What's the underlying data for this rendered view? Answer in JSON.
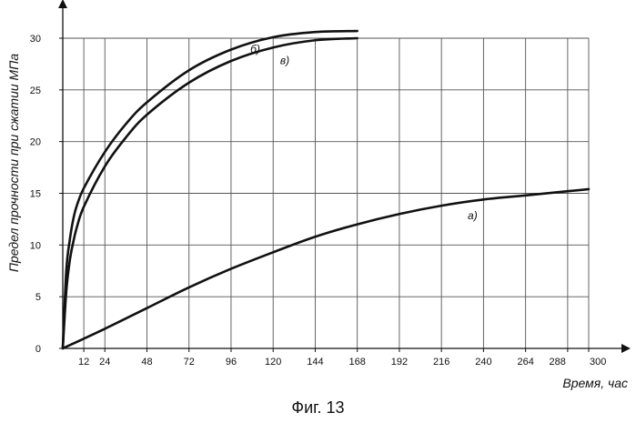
{
  "chart_data": {
    "type": "line",
    "xlabel": "Время, час",
    "ylabel": "Предел прочности при сжатии МПа",
    "xlim": [
      0,
      300
    ],
    "ylim": [
      0,
      30
    ],
    "x_ticks": [
      12,
      24,
      48,
      72,
      96,
      120,
      144,
      168,
      192,
      216,
      240,
      264,
      288,
      300
    ],
    "x_tick_labels": [
      "12",
      "24",
      "48",
      "72",
      "96",
      "120",
      "144",
      "168",
      "192",
      "216",
      "240",
      "264",
      "288",
      "300"
    ],
    "y_ticks": [
      0,
      5,
      10,
      15,
      20,
      25,
      30
    ],
    "y_tick_labels": [
      "0",
      "5",
      "10",
      "15",
      "20",
      "25",
      "30"
    ],
    "grid": true,
    "series": [
      {
        "name": "а)",
        "x": [
          0,
          24,
          48,
          72,
          96,
          120,
          144,
          168,
          192,
          216,
          240,
          264,
          288,
          300
        ],
        "y": [
          0,
          1.9,
          3.9,
          5.9,
          7.7,
          9.3,
          10.8,
          12.0,
          13.0,
          13.8,
          14.4,
          14.8,
          15.2,
          15.4
        ]
      },
      {
        "name": "б)",
        "x": [
          0,
          2,
          4,
          6,
          8,
          12,
          24,
          36,
          48,
          72,
          96,
          120,
          144,
          168
        ],
        "y": [
          0,
          7.5,
          10.5,
          12.5,
          13.8,
          15.5,
          19.0,
          21.7,
          23.8,
          26.9,
          28.9,
          30.1,
          30.6,
          30.7
        ]
      },
      {
        "name": "в)",
        "x": [
          0,
          2,
          4,
          6,
          8,
          12,
          24,
          36,
          48,
          72,
          96,
          120,
          144,
          168
        ],
        "y": [
          0,
          5.5,
          8.5,
          10.3,
          11.7,
          13.7,
          17.6,
          20.4,
          22.6,
          25.7,
          27.8,
          29.1,
          29.8,
          30.0
        ]
      }
    ]
  },
  "caption": "Фиг. 13"
}
